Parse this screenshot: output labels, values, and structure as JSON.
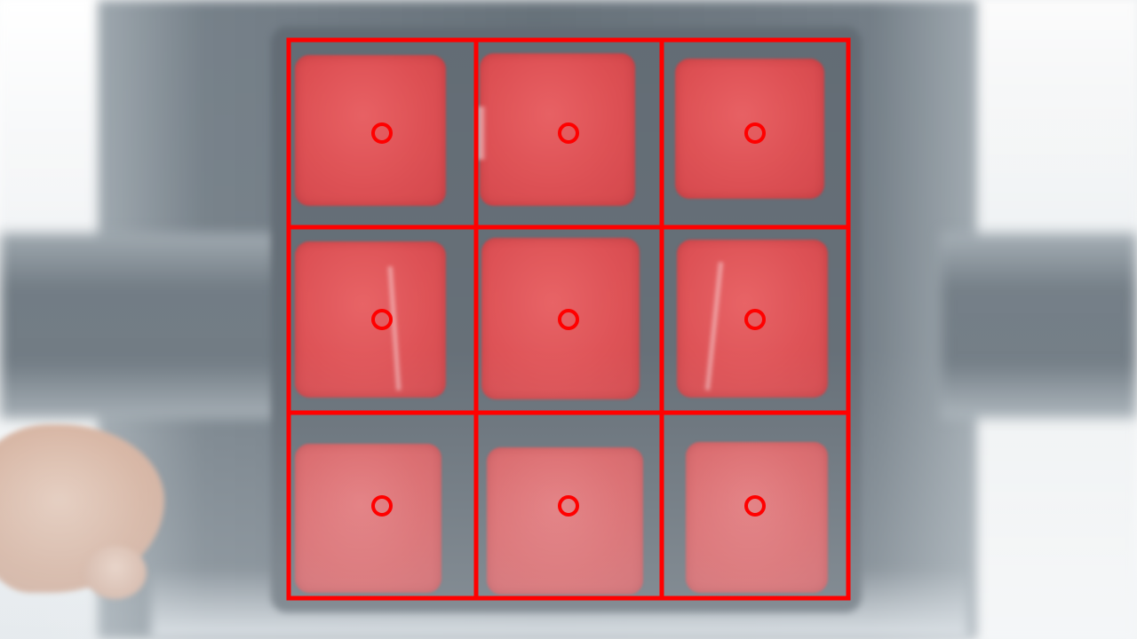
{
  "scene": {
    "subject": "rubiks-cube-red-face",
    "background": "washed-out-window"
  },
  "detection_overlay": {
    "stroke_color": "#ff0000",
    "rows": 3,
    "cols": 3,
    "marker": "circle"
  },
  "cube_face": {
    "sticker_color": "#db4549",
    "stickers": [
      [
        "red",
        "red",
        "red"
      ],
      [
        "red",
        "red",
        "red"
      ],
      [
        "red",
        "red",
        "red"
      ]
    ]
  }
}
